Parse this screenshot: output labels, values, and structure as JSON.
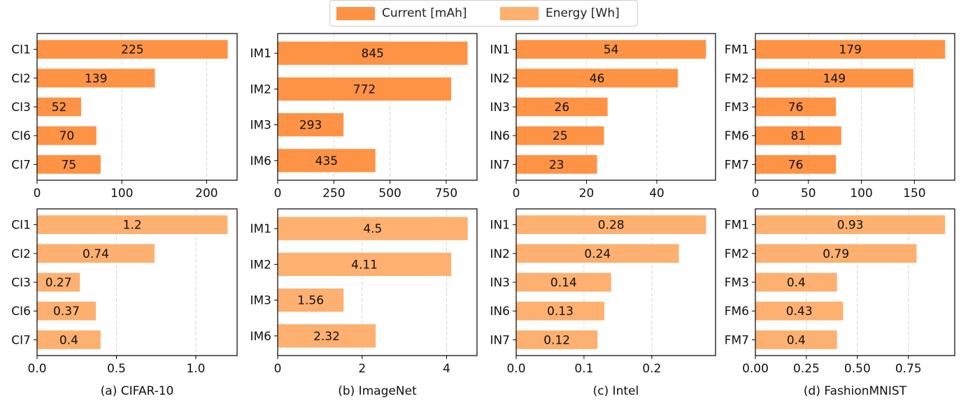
{
  "legend": {
    "current_label": "Current [mAh]",
    "energy_label": "Energy [Wh]",
    "current_color": "#fe9346",
    "energy_color": "#fdb070"
  },
  "chart_data": [
    {
      "type": "bar",
      "orientation": "horizontal",
      "metric": "Current [mAh]",
      "row": "top",
      "dataset": "CIFAR-10",
      "categories": [
        "CI1",
        "CI2",
        "CI3",
        "CI6",
        "CI7"
      ],
      "values": [
        225,
        139,
        52,
        70,
        75
      ],
      "labels": [
        "225",
        "139",
        "52",
        "70",
        "75"
      ],
      "xlim": [
        0,
        236
      ],
      "xticks": [
        0,
        100,
        200
      ],
      "xticklabels": [
        "0",
        "100",
        "200"
      ],
      "xlabel": "",
      "grid": "x-dashed"
    },
    {
      "type": "bar",
      "orientation": "horizontal",
      "metric": "Current [mAh]",
      "row": "top",
      "dataset": "ImageNet",
      "categories": [
        "IM1",
        "IM2",
        "IM3",
        "IM6"
      ],
      "values": [
        845,
        772,
        293,
        435
      ],
      "labels": [
        "845",
        "772",
        "293",
        "435"
      ],
      "xlim": [
        0,
        887
      ],
      "xticks": [
        0,
        250,
        500,
        750
      ],
      "xticklabels": [
        "0",
        "250",
        "500",
        "750"
      ],
      "xlabel": "",
      "grid": "x-dashed"
    },
    {
      "type": "bar",
      "orientation": "horizontal",
      "metric": "Current [mAh]",
      "row": "top",
      "dataset": "Intel",
      "categories": [
        "IN1",
        "IN2",
        "IN3",
        "IN6",
        "IN7"
      ],
      "values": [
        54,
        46,
        26,
        25,
        23
      ],
      "labels": [
        "54",
        "46",
        "26",
        "25",
        "23"
      ],
      "xlim": [
        0,
        56.7
      ],
      "xticks": [
        0,
        20,
        40
      ],
      "xticklabels": [
        "0",
        "20",
        "40"
      ],
      "xlabel": "",
      "grid": "x-dashed"
    },
    {
      "type": "bar",
      "orientation": "horizontal",
      "metric": "Current [mAh]",
      "row": "top",
      "dataset": "FashionMNIST",
      "categories": [
        "FM1",
        "FM2",
        "FM3",
        "FM6",
        "FM7"
      ],
      "values": [
        179,
        149,
        76,
        81,
        76
      ],
      "labels": [
        "179",
        "149",
        "76",
        "81",
        "76"
      ],
      "xlim": [
        0,
        188
      ],
      "xticks": [
        0,
        50,
        100,
        150
      ],
      "xticklabels": [
        "0",
        "50",
        "100",
        "150"
      ],
      "xlabel": "",
      "grid": "x-dashed"
    },
    {
      "type": "bar",
      "orientation": "horizontal",
      "metric": "Energy [Wh]",
      "row": "bottom",
      "dataset": "CIFAR-10",
      "categories": [
        "CI1",
        "CI2",
        "CI3",
        "CI6",
        "CI7"
      ],
      "values": [
        1.2,
        0.74,
        0.27,
        0.37,
        0.4
      ],
      "labels": [
        "1.2",
        "0.74",
        "0.27",
        "0.37",
        "0.4"
      ],
      "xlim": [
        0,
        1.26
      ],
      "xticks": [
        0,
        0.5,
        1.0
      ],
      "xticklabels": [
        "0.0",
        "0.5",
        "1.0"
      ],
      "xlabel": "(a) CIFAR-10",
      "grid": "x-dashed"
    },
    {
      "type": "bar",
      "orientation": "horizontal",
      "metric": "Energy [Wh]",
      "row": "bottom",
      "dataset": "ImageNet",
      "categories": [
        "IM1",
        "IM2",
        "IM3",
        "IM6"
      ],
      "values": [
        4.5,
        4.11,
        1.56,
        2.32
      ],
      "labels": [
        "4.5",
        "4.11",
        "1.56",
        "2.32"
      ],
      "xlim": [
        0,
        4.72
      ],
      "xticks": [
        0,
        2,
        4
      ],
      "xticklabels": [
        "0",
        "2",
        "4"
      ],
      "xlabel": "(b) ImageNet",
      "grid": "x-dashed"
    },
    {
      "type": "bar",
      "orientation": "horizontal",
      "metric": "Energy [Wh]",
      "row": "bottom",
      "dataset": "Intel",
      "categories": [
        "IN1",
        "IN2",
        "IN3",
        "IN6",
        "IN7"
      ],
      "values": [
        0.28,
        0.24,
        0.14,
        0.13,
        0.12
      ],
      "labels": [
        "0.28",
        "0.24",
        "0.14",
        "0.13",
        "0.12"
      ],
      "xlim": [
        0,
        0.294
      ],
      "xticks": [
        0,
        0.1,
        0.2
      ],
      "xticklabels": [
        "0.0",
        "0.1",
        "0.2"
      ],
      "xlabel": "(c) Intel",
      "grid": "x-dashed"
    },
    {
      "type": "bar",
      "orientation": "horizontal",
      "metric": "Energy [Wh]",
      "row": "bottom",
      "dataset": "FashionMNIST",
      "categories": [
        "FM1",
        "FM2",
        "FM3",
        "FM6",
        "FM7"
      ],
      "values": [
        0.93,
        0.79,
        0.4,
        0.43,
        0.4
      ],
      "labels": [
        "0.93",
        "0.79",
        "0.4",
        "0.43",
        "0.4"
      ],
      "xlim": [
        0,
        0.977
      ],
      "xticks": [
        0,
        0.25,
        0.5,
        0.75
      ],
      "xticklabels": [
        "0.00",
        "0.25",
        "0.50",
        "0.75"
      ],
      "xlabel": "(d) FashionMNIST",
      "grid": "x-dashed"
    }
  ]
}
